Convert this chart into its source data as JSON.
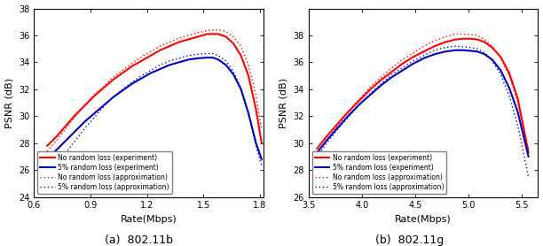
{
  "fig_width": 6.12,
  "fig_height": 2.78,
  "dpi": 100,
  "subplot_a": {
    "title": "(a)  802.11b",
    "xlabel": "Rate(Mbps)",
    "ylabel": "PSNR (dB)",
    "xlim": [
      0.6,
      1.82
    ],
    "ylim": [
      24,
      38
    ],
    "xticks": [
      0.6,
      0.9,
      1.2,
      1.5,
      1.8
    ],
    "yticks": [
      24,
      26,
      28,
      30,
      32,
      34,
      36,
      38
    ],
    "red_exp_x": [
      0.67,
      0.72,
      0.77,
      0.82,
      0.87,
      0.92,
      0.97,
      1.02,
      1.07,
      1.12,
      1.17,
      1.22,
      1.27,
      1.32,
      1.37,
      1.42,
      1.47,
      1.52,
      1.55,
      1.58,
      1.62,
      1.66,
      1.7,
      1.74,
      1.78,
      1.81
    ],
    "red_exp_y": [
      27.8,
      28.5,
      29.3,
      30.1,
      30.8,
      31.5,
      32.1,
      32.7,
      33.2,
      33.7,
      34.1,
      34.5,
      34.9,
      35.2,
      35.5,
      35.7,
      35.9,
      36.1,
      36.1,
      36.1,
      35.9,
      35.4,
      34.5,
      33.0,
      30.5,
      28.0
    ],
    "blue_exp_x": [
      0.67,
      0.72,
      0.77,
      0.82,
      0.87,
      0.92,
      0.97,
      1.02,
      1.07,
      1.12,
      1.17,
      1.22,
      1.27,
      1.32,
      1.37,
      1.42,
      1.47,
      1.52,
      1.55,
      1.58,
      1.62,
      1.66,
      1.7,
      1.74,
      1.78,
      1.81
    ],
    "blue_exp_y": [
      26.9,
      27.5,
      28.2,
      28.9,
      29.6,
      30.2,
      30.8,
      31.4,
      31.9,
      32.4,
      32.8,
      33.2,
      33.5,
      33.8,
      34.0,
      34.2,
      34.3,
      34.35,
      34.35,
      34.2,
      33.8,
      33.1,
      32.0,
      30.2,
      28.0,
      26.8
    ],
    "red_approx_x": [
      0.67,
      0.72,
      0.77,
      0.82,
      0.87,
      0.92,
      0.97,
      1.02,
      1.07,
      1.12,
      1.17,
      1.22,
      1.27,
      1.32,
      1.37,
      1.42,
      1.47,
      1.52,
      1.55,
      1.58,
      1.62,
      1.66,
      1.7,
      1.74,
      1.78,
      1.81
    ],
    "red_approx_y": [
      27.4,
      28.2,
      29.1,
      30.0,
      30.8,
      31.6,
      32.2,
      32.9,
      33.4,
      33.9,
      34.4,
      34.8,
      35.2,
      35.5,
      35.8,
      36.0,
      36.2,
      36.35,
      36.4,
      36.4,
      36.3,
      35.9,
      35.2,
      33.8,
      31.5,
      29.0
    ],
    "blue_approx_x": [
      0.67,
      0.72,
      0.77,
      0.82,
      0.87,
      0.92,
      0.97,
      1.02,
      1.07,
      1.12,
      1.17,
      1.22,
      1.27,
      1.32,
      1.37,
      1.42,
      1.47,
      1.52,
      1.55,
      1.58,
      1.62,
      1.66,
      1.7,
      1.74,
      1.78,
      1.81
    ],
    "blue_approx_y": [
      25.5,
      26.4,
      27.3,
      28.2,
      29.1,
      29.9,
      30.7,
      31.4,
      32.0,
      32.5,
      33.0,
      33.4,
      33.8,
      34.1,
      34.3,
      34.5,
      34.6,
      34.65,
      34.65,
      34.5,
      34.1,
      33.3,
      32.1,
      30.3,
      27.8,
      26.3
    ]
  },
  "subplot_b": {
    "title": "(b)  802.11g",
    "xlabel": "Rate(Mbps)",
    "ylabel": "PSNR (dB)",
    "xlim": [
      3.5,
      5.65
    ],
    "ylim": [
      26,
      40
    ],
    "xticks": [
      3.5,
      4.0,
      4.5,
      5.0,
      5.5
    ],
    "yticks": [
      26,
      28,
      30,
      32,
      34,
      36,
      38
    ],
    "red_exp_x": [
      3.58,
      3.68,
      3.78,
      3.88,
      3.98,
      4.08,
      4.18,
      4.28,
      4.38,
      4.48,
      4.58,
      4.68,
      4.78,
      4.88,
      4.95,
      5.02,
      5.08,
      5.15,
      5.22,
      5.3,
      5.38,
      5.46,
      5.56
    ],
    "red_exp_y": [
      29.6,
      30.6,
      31.5,
      32.4,
      33.2,
      34.0,
      34.7,
      35.3,
      35.9,
      36.4,
      36.8,
      37.2,
      37.5,
      37.7,
      37.75,
      37.75,
      37.7,
      37.5,
      37.1,
      36.4,
      35.2,
      33.3,
      29.3
    ],
    "blue_exp_x": [
      3.58,
      3.68,
      3.78,
      3.88,
      3.98,
      4.08,
      4.18,
      4.28,
      4.38,
      4.48,
      4.58,
      4.68,
      4.78,
      4.88,
      4.95,
      5.02,
      5.08,
      5.15,
      5.22,
      5.3,
      5.38,
      5.46,
      5.56
    ],
    "blue_exp_y": [
      29.3,
      30.3,
      31.2,
      32.1,
      32.9,
      33.6,
      34.3,
      34.9,
      35.4,
      35.9,
      36.3,
      36.6,
      36.8,
      36.9,
      36.9,
      36.85,
      36.8,
      36.6,
      36.2,
      35.4,
      34.1,
      32.3,
      29.0
    ],
    "red_approx_x": [
      3.58,
      3.68,
      3.78,
      3.88,
      3.98,
      4.08,
      4.18,
      4.28,
      4.38,
      4.48,
      4.58,
      4.68,
      4.78,
      4.88,
      4.95,
      5.02,
      5.08,
      5.15,
      5.22,
      5.3,
      5.38,
      5.46,
      5.56
    ],
    "red_approx_y": [
      29.2,
      30.3,
      31.4,
      32.4,
      33.3,
      34.2,
      34.9,
      35.6,
      36.2,
      36.7,
      37.2,
      37.6,
      37.9,
      38.1,
      38.1,
      38.05,
      38.0,
      37.7,
      37.2,
      36.3,
      35.0,
      33.0,
      29.5
    ],
    "blue_approx_x": [
      3.58,
      3.68,
      3.78,
      3.88,
      3.98,
      4.08,
      4.18,
      4.28,
      4.38,
      4.48,
      4.58,
      4.68,
      4.78,
      4.88,
      4.95,
      5.02,
      5.08,
      5.15,
      5.22,
      5.3,
      5.38,
      5.46,
      5.56
    ],
    "blue_approx_y": [
      29.0,
      30.1,
      31.1,
      32.0,
      32.9,
      33.7,
      34.4,
      35.1,
      35.6,
      36.1,
      36.5,
      36.9,
      37.1,
      37.2,
      37.15,
      37.1,
      37.0,
      36.7,
      36.1,
      35.1,
      33.5,
      31.3,
      27.5
    ]
  },
  "legend": [
    "No random loss (experiment)",
    "5% random loss (experiment)",
    "No random loss (approximation)",
    "5% random loss (approximation)"
  ],
  "red_color": "#ff0000",
  "blue_color": "#0000bb",
  "linewidth_exp": 1.5,
  "linewidth_approx": 1.0,
  "dotsize": 3.0
}
